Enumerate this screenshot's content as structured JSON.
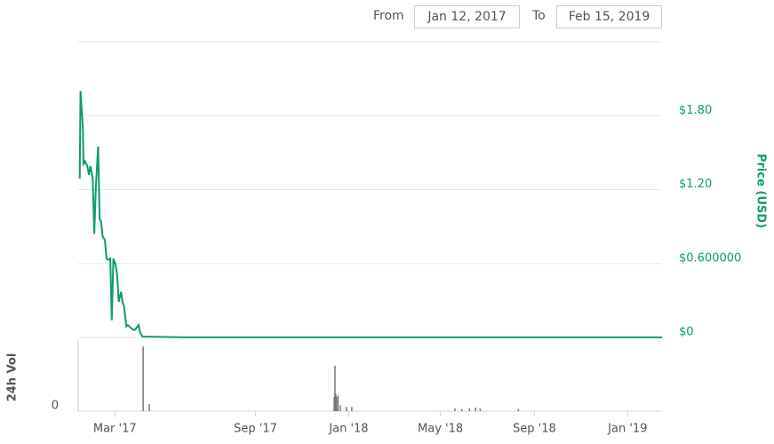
{
  "controls": {
    "from_label": "From",
    "from_value": "Jan 12, 2017",
    "to_label": "To",
    "to_value": "Feb 15, 2019"
  },
  "chart_data": [
    {
      "type": "line",
      "y_label": "Price (USD)",
      "color": "#0d9b6c",
      "xlim": [
        "2017-01-12",
        "2019-02-15"
      ],
      "ylim": [
        0,
        2.4
      ],
      "yticks": [
        {
          "value": 0,
          "label": "$0"
        },
        {
          "value": 0.6,
          "label": "$0.600000"
        },
        {
          "value": 1.2,
          "label": "$1.20"
        },
        {
          "value": 1.8,
          "label": "$1.80"
        }
      ],
      "grid": true,
      "x": [
        "2017-01-14",
        "2017-01-15",
        "2017-01-18",
        "2017-01-19",
        "2017-01-21",
        "2017-01-24",
        "2017-01-26",
        "2017-01-28",
        "2017-01-31",
        "2017-02-02",
        "2017-02-04",
        "2017-02-07",
        "2017-02-09",
        "2017-02-11",
        "2017-02-13",
        "2017-02-16",
        "2017-02-18",
        "2017-02-20",
        "2017-02-23",
        "2017-02-25",
        "2017-02-27",
        "2017-03-02",
        "2017-03-04",
        "2017-03-06",
        "2017-03-09",
        "2017-03-11",
        "2017-03-13",
        "2017-03-16",
        "2017-03-18",
        "2017-03-23",
        "2017-03-27",
        "2017-04-01",
        "2017-04-03",
        "2017-04-06",
        "2017-06-01",
        "2018-01-01",
        "2019-02-15"
      ],
      "values": [
        1.29,
        2.0,
        1.71,
        1.41,
        1.43,
        1.39,
        1.32,
        1.39,
        1.29,
        0.84,
        1.21,
        1.55,
        0.96,
        0.94,
        0.82,
        0.79,
        0.64,
        0.63,
        0.64,
        0.14,
        0.64,
        0.59,
        0.5,
        0.29,
        0.37,
        0.29,
        0.25,
        0.09,
        0.1,
        0.07,
        0.06,
        0.1,
        0.04,
        0.007,
        0.001,
        0.001,
        0.001
      ]
    },
    {
      "type": "bar",
      "y_label": "24h Vol",
      "color": "#777777",
      "xlim": [
        "2017-01-12",
        "2019-02-15"
      ],
      "ylim": [
        0,
        100
      ],
      "yticks": [
        0
      ],
      "xticks": [
        {
          "value": "2017-03-01",
          "label": "Mar '17"
        },
        {
          "value": "2017-09-01",
          "label": "Sep '17"
        },
        {
          "value": "2018-01-01",
          "label": "Jan '18"
        },
        {
          "value": "2018-05-01",
          "label": "May '18"
        },
        {
          "value": "2018-09-01",
          "label": "Sep '18"
        },
        {
          "value": "2019-01-01",
          "label": "Jan '19"
        }
      ],
      "x": [
        "2017-04-07",
        "2017-04-15",
        "2017-12-13",
        "2017-12-14",
        "2017-12-15",
        "2017-12-16",
        "2017-12-18",
        "2017-12-21",
        "2017-12-29",
        "2018-01-05",
        "2018-05-20",
        "2018-05-29",
        "2018-06-08",
        "2018-06-16",
        "2018-06-22",
        "2018-08-11"
      ],
      "values": [
        91,
        10,
        20,
        64,
        25,
        20,
        22,
        8,
        6,
        6,
        4,
        3,
        4,
        5,
        4,
        3
      ]
    }
  ]
}
